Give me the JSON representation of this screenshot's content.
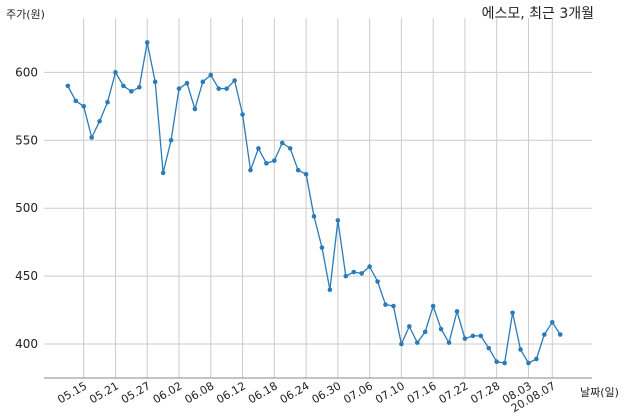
{
  "chart_data": {
    "type": "line",
    "title": "에스모, 최근 3개월",
    "ylabel": "주가(원)",
    "xlabel": "날짜(일)",
    "ylim": [
      375,
      640
    ],
    "xlim": [
      -3,
      66
    ],
    "yticks": [
      400,
      450,
      500,
      550,
      600
    ],
    "xticks": [
      {
        "i": 2,
        "label": "05.15"
      },
      {
        "i": 6,
        "label": "05.21"
      },
      {
        "i": 10,
        "label": "05.27"
      },
      {
        "i": 14,
        "label": "06.02"
      },
      {
        "i": 18,
        "label": "06.08"
      },
      {
        "i": 22,
        "label": "06.12"
      },
      {
        "i": 26,
        "label": "06.18"
      },
      {
        "i": 30,
        "label": "06.24"
      },
      {
        "i": 34,
        "label": "06.30"
      },
      {
        "i": 38,
        "label": "07.06"
      },
      {
        "i": 42,
        "label": "07.10"
      },
      {
        "i": 46,
        "label": "07.16"
      },
      {
        "i": 50,
        "label": "07.22"
      },
      {
        "i": 54,
        "label": "07.28"
      },
      {
        "i": 58,
        "label": "08.03"
      },
      {
        "i": 61,
        "label": "20.08.07"
      }
    ],
    "color": "#2b7bba",
    "grid": true,
    "series": [
      {
        "values": [
          590,
          579,
          575,
          552,
          564,
          578,
          600,
          590,
          586,
          589,
          622,
          593,
          526,
          550,
          588,
          592,
          573,
          593,
          598,
          588,
          588,
          594,
          569,
          528,
          544,
          533,
          535,
          548,
          544,
          528,
          525,
          494,
          471,
          440,
          491,
          450,
          453,
          452,
          457,
          446,
          429,
          428,
          400,
          413,
          401,
          409,
          428,
          411,
          401,
          424,
          404,
          406,
          406,
          397,
          387,
          386,
          423,
          396,
          386,
          389,
          407,
          416,
          407
        ]
      }
    ]
  }
}
